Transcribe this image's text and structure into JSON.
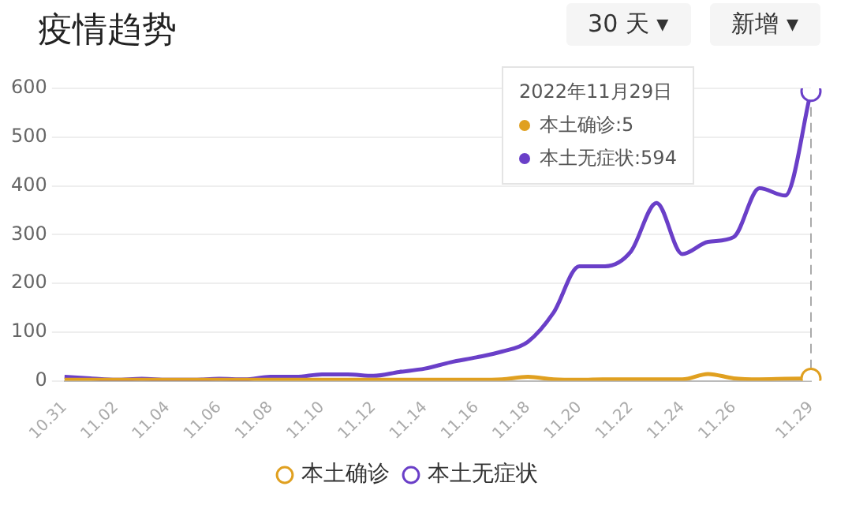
{
  "chart_data": {
    "type": "line",
    "title": "疫情趋势",
    "categories": [
      "10.31",
      null,
      "11.02",
      null,
      "11.04",
      null,
      "11.06",
      null,
      "11.08",
      null,
      "11.10",
      null,
      "11.12",
      null,
      "11.14",
      null,
      "11.16",
      null,
      "11.18",
      null,
      "11.20",
      null,
      "11.22",
      null,
      "11.24",
      null,
      "11.26",
      null,
      null,
      "11.29"
    ],
    "series": [
      {
        "name": "本土确诊",
        "color": "#e0a020",
        "values": [
          2,
          2,
          2,
          2,
          2,
          2,
          2,
          2,
          2,
          2,
          2,
          2,
          2,
          2,
          2,
          2,
          2,
          3,
          8,
          3,
          2,
          3,
          3,
          3,
          3,
          14,
          5,
          3,
          4,
          5
        ]
      },
      {
        "name": "本土无症状",
        "color": "#6a3fc8",
        "values": [
          8,
          5,
          2,
          4,
          2,
          2,
          4,
          3,
          8,
          8,
          13,
          13,
          10,
          18,
          25,
          38,
          48,
          60,
          80,
          140,
          235,
          235,
          265,
          365,
          260,
          285,
          295,
          395,
          380,
          594
        ]
      }
    ],
    "ylim": [
      0,
      600
    ],
    "yticks": [
      0,
      100,
      200,
      300,
      400,
      500,
      600
    ],
    "grid": "y",
    "legend": "bottom",
    "marker": "none",
    "line_style": "solid",
    "ref_lines": [
      {
        "axis": "x",
        "value": "11.29",
        "color": "#aaaaaa",
        "line_style": "dashed"
      }
    ],
    "annotations": [
      "30 天 ▾",
      "新增 ▾",
      "2022年11月29日",
      "本土确诊:5",
      "本土无症状:594"
    ]
  }
}
